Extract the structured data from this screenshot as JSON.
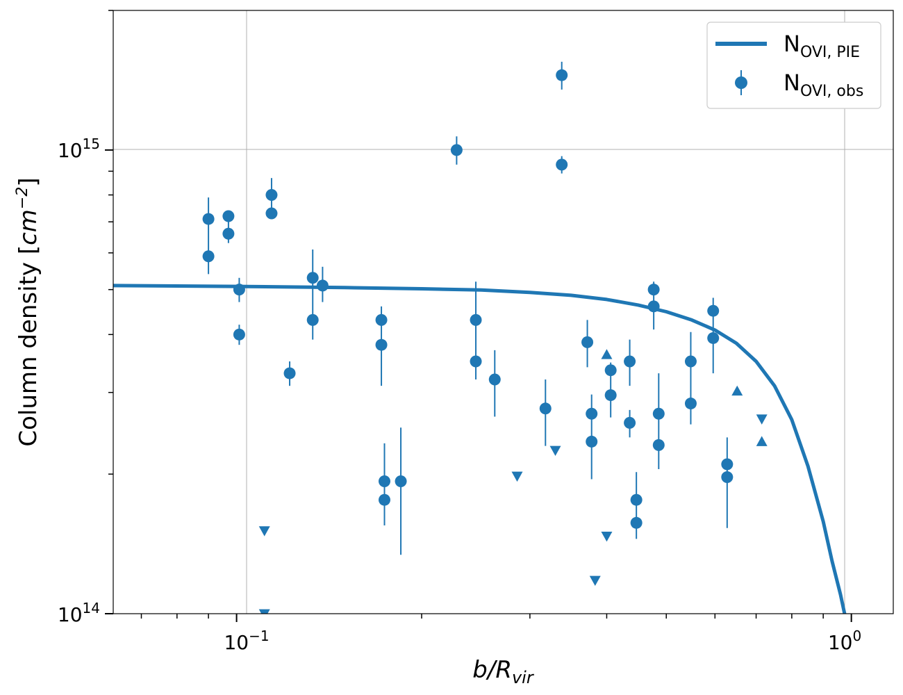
{
  "chart_data": {
    "type": "scatter",
    "title": "",
    "xlabel": {
      "main": "b/R",
      "sub": "vir"
    },
    "ylabel": {
      "main": "Column density [",
      "unit": "cm",
      "exp": "−2",
      "close": "]"
    },
    "xscale": "log",
    "yscale": "log",
    "xlim": [
      0.063,
      1.17
    ],
    "ylim": [
      100000000000000.0,
      2000000000000000.0
    ],
    "grid": true,
    "legend_position": "top-right",
    "x_tick_labels": [
      {
        "value": 0.1,
        "base": "10",
        "exp": "−1"
      },
      {
        "value": 1.0,
        "base": "10",
        "exp": "0"
      }
    ],
    "y_tick_labels": [
      {
        "value": 100000000000000.0,
        "base": "10",
        "exp": "14"
      },
      {
        "value": 1000000000000000.0,
        "base": "10",
        "exp": "15"
      }
    ],
    "color": "#1f77b4",
    "series": [
      {
        "name": {
          "main": "N",
          "sub": "OVI, PIE"
        },
        "type": "line",
        "points": [
          [
            0.063,
            510000000000000.0
          ],
          [
            0.1,
            508000000000000.0
          ],
          [
            0.15,
            505000000000000.0
          ],
          [
            0.2,
            502000000000000.0
          ],
          [
            0.25,
            499000000000000.0
          ],
          [
            0.3,
            493000000000000.0
          ],
          [
            0.35,
            486000000000000.0
          ],
          [
            0.4,
            476000000000000.0
          ],
          [
            0.45,
            463000000000000.0
          ],
          [
            0.5,
            448000000000000.0
          ],
          [
            0.55,
            430000000000000.0
          ],
          [
            0.6,
            409000000000000.0
          ],
          [
            0.65,
            383000000000000.0
          ],
          [
            0.7,
            350000000000000.0
          ],
          [
            0.75,
            310000000000000.0
          ],
          [
            0.8,
            262000000000000.0
          ],
          [
            0.85,
            208000000000000.0
          ],
          [
            0.9,
            158000000000000.0
          ],
          [
            0.93,
            130000000000000.0
          ],
          [
            0.96,
            110000000000000.0
          ],
          [
            0.975,
            100000000000000.0
          ]
        ]
      },
      {
        "name": {
          "main": "N",
          "sub": "OVI, obs"
        },
        "type": "errorbar",
        "points": [
          {
            "x": 0.09,
            "y": 710000000000000.0,
            "ylo": 540000000000000.0,
            "yhi": 790000000000000.0
          },
          {
            "x": 0.09,
            "y": 590000000000000.0
          },
          {
            "x": 0.097,
            "y": 720000000000000.0,
            "ylo": 630000000000000.0,
            "yhi": 740000000000000.0
          },
          {
            "x": 0.097,
            "y": 660000000000000.0
          },
          {
            "x": 0.101,
            "y": 500000000000000.0,
            "ylo": 470000000000000.0,
            "yhi": 530000000000000.0
          },
          {
            "x": 0.101,
            "y": 400000000000000.0,
            "ylo": 380000000000000.0,
            "yhi": 420000000000000.0
          },
          {
            "x": 0.114,
            "y": 800000000000000.0,
            "ylo": 710000000000000.0,
            "yhi": 870000000000000.0
          },
          {
            "x": 0.114,
            "y": 730000000000000.0
          },
          {
            "x": 0.122,
            "y": 330000000000000.0,
            "ylo": 310000000000000.0,
            "yhi": 350000000000000.0
          },
          {
            "x": 0.133,
            "y": 530000000000000.0,
            "ylo": 390000000000000.0,
            "yhi": 610000000000000.0
          },
          {
            "x": 0.133,
            "y": 430000000000000.0
          },
          {
            "x": 0.138,
            "y": 510000000000000.0,
            "ylo": 470000000000000.0,
            "yhi": 560000000000000.0
          },
          {
            "x": 0.172,
            "y": 430000000000000.0,
            "ylo": 310000000000000.0,
            "yhi": 460000000000000.0
          },
          {
            "x": 0.172,
            "y": 380000000000000.0
          },
          {
            "x": 0.174,
            "y": 193000000000000.0,
            "ylo": 155000000000000.0,
            "yhi": 233000000000000.0
          },
          {
            "x": 0.174,
            "y": 176000000000000.0
          },
          {
            "x": 0.185,
            "y": 193000000000000.0,
            "ylo": 134000000000000.0,
            "yhi": 252000000000000.0
          },
          {
            "x": 0.228,
            "y": 1000000000000000.0,
            "ylo": 930000000000000.0,
            "yhi": 1070000000000000.0
          },
          {
            "x": 0.245,
            "y": 430000000000000.0,
            "ylo": 320000000000000.0,
            "yhi": 520000000000000.0
          },
          {
            "x": 0.245,
            "y": 350000000000000.0
          },
          {
            "x": 0.263,
            "y": 320000000000000.0,
            "ylo": 266000000000000.0,
            "yhi": 370000000000000.0
          },
          {
            "x": 0.318,
            "y": 277000000000000.0,
            "ylo": 230000000000000.0,
            "yhi": 320000000000000.0
          },
          {
            "x": 0.338,
            "y": 1450000000000000.0,
            "ylo": 1350000000000000.0,
            "yhi": 1550000000000000.0
          },
          {
            "x": 0.338,
            "y": 930000000000000.0,
            "ylo": 890000000000000.0,
            "yhi": 970000000000000.0
          },
          {
            "x": 0.372,
            "y": 385000000000000.0,
            "ylo": 340000000000000.0,
            "yhi": 430000000000000.0
          },
          {
            "x": 0.378,
            "y": 270000000000000.0,
            "ylo": 195000000000000.0,
            "yhi": 297000000000000.0
          },
          {
            "x": 0.378,
            "y": 235000000000000.0
          },
          {
            "x": 0.406,
            "y": 335000000000000.0,
            "ylo": 265000000000000.0,
            "yhi": 348000000000000.0
          },
          {
            "x": 0.406,
            "y": 296000000000000.0
          },
          {
            "x": 0.436,
            "y": 350000000000000.0,
            "ylo": 310000000000000.0,
            "yhi": 390000000000000.0
          },
          {
            "x": 0.436,
            "y": 258000000000000.0,
            "ylo": 240000000000000.0,
            "yhi": 275000000000000.0
          },
          {
            "x": 0.447,
            "y": 176000000000000.0,
            "ylo": 145000000000000.0,
            "yhi": 202000000000000.0
          },
          {
            "x": 0.447,
            "y": 157000000000000.0
          },
          {
            "x": 0.477,
            "y": 500000000000000.0,
            "ylo": 410000000000000.0,
            "yhi": 520000000000000.0
          },
          {
            "x": 0.477,
            "y": 460000000000000.0
          },
          {
            "x": 0.486,
            "y": 270000000000000.0,
            "ylo": 205000000000000.0,
            "yhi": 330000000000000.0
          },
          {
            "x": 0.486,
            "y": 231000000000000.0
          },
          {
            "x": 0.548,
            "y": 350000000000000.0,
            "ylo": 256000000000000.0,
            "yhi": 405000000000000.0
          },
          {
            "x": 0.548,
            "y": 284000000000000.0
          },
          {
            "x": 0.596,
            "y": 450000000000000.0,
            "ylo": 330000000000000.0,
            "yhi": 480000000000000.0
          },
          {
            "x": 0.596,
            "y": 393000000000000.0
          },
          {
            "x": 0.628,
            "y": 210000000000000.0,
            "ylo": 153000000000000.0,
            "yhi": 240000000000000.0
          },
          {
            "x": 0.628,
            "y": 197000000000000.0
          }
        ]
      },
      {
        "type": "lower_limit",
        "points": [
          {
            "x": 0.4,
            "y": 362000000000000.0
          },
          {
            "x": 0.652,
            "y": 302000000000000.0
          },
          {
            "x": 0.715,
            "y": 235000000000000.0
          }
        ]
      },
      {
        "type": "upper_limit",
        "points": [
          {
            "x": 0.111,
            "y": 151000000000000.0
          },
          {
            "x": 0.111,
            "y": 100000000000000.0
          },
          {
            "x": 0.286,
            "y": 198000000000000.0
          },
          {
            "x": 0.33,
            "y": 225000000000000.0
          },
          {
            "x": 0.383,
            "y": 118000000000000.0
          },
          {
            "x": 0.4,
            "y": 147000000000000.0
          },
          {
            "x": 0.715,
            "y": 263000000000000.0
          }
        ]
      }
    ]
  }
}
